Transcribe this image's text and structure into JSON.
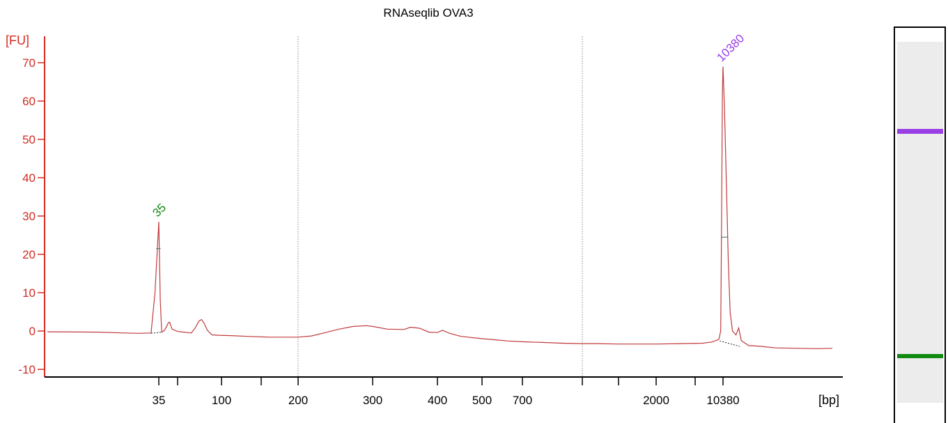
{
  "chart_data": {
    "type": "line",
    "title": "RNAseqlib OVA3",
    "ylabel": "[FU]",
    "xlabel": "[bp]",
    "ylim": [
      -12,
      75
    ],
    "y_ticks": [
      -10,
      0,
      10,
      20,
      30,
      40,
      50,
      60,
      70
    ],
    "x_tick_labels": [
      "35",
      "100",
      "200",
      "300",
      "400",
      "500",
      "700",
      "2000",
      "10380"
    ],
    "x_unlabeled_ticks": [
      "50",
      "150",
      "1000",
      "1500",
      "4000"
    ],
    "dotted_gridlines_at": [
      "200",
      "1000"
    ],
    "peaks": [
      {
        "label": "35",
        "bp": 35,
        "fu": 28.5,
        "color": "#118a11"
      },
      {
        "label": "10380",
        "bp": 10380,
        "fu": 69,
        "color": "#9a3ee6"
      }
    ],
    "series": [
      {
        "color": "#c0393b",
        "points": [
          [
            15,
            -0.2
          ],
          [
            22,
            -0.3
          ],
          [
            27,
            -0.5
          ],
          [
            30,
            -0.6
          ],
          [
            33,
            -0.5
          ],
          [
            34,
            10
          ],
          [
            35,
            28.5
          ],
          [
            36,
            8
          ],
          [
            37,
            -0.3
          ],
          [
            39,
            0.2
          ],
          [
            41,
            1.5
          ],
          [
            42,
            2.2
          ],
          [
            43,
            2.3
          ],
          [
            45,
            0.5
          ],
          [
            50,
            -0.1
          ],
          [
            55,
            -0.3
          ],
          [
            62,
            -0.5
          ],
          [
            66,
            0.8
          ],
          [
            70,
            2.6
          ],
          [
            73,
            3.0
          ],
          [
            76,
            2.0
          ],
          [
            80,
            0.2
          ],
          [
            86,
            -1.0
          ],
          [
            95,
            -1.1
          ],
          [
            110,
            -1.2
          ],
          [
            130,
            -1.4
          ],
          [
            160,
            -1.6
          ],
          [
            190,
            -1.6
          ],
          [
            200,
            -1.6
          ],
          [
            215,
            -1.3
          ],
          [
            230,
            -0.5
          ],
          [
            250,
            0.5
          ],
          [
            270,
            1.2
          ],
          [
            290,
            1.4
          ],
          [
            300,
            1.2
          ],
          [
            320,
            0.5
          ],
          [
            345,
            0.4
          ],
          [
            355,
            1.0
          ],
          [
            370,
            0.7
          ],
          [
            385,
            -0.3
          ],
          [
            400,
            -0.4
          ],
          [
            410,
            0.2
          ],
          [
            425,
            -0.6
          ],
          [
            450,
            -1.4
          ],
          [
            500,
            -2.0
          ],
          [
            560,
            -2.3
          ],
          [
            620,
            -2.6
          ],
          [
            700,
            -2.8
          ],
          [
            800,
            -3.0
          ],
          [
            900,
            -3.2
          ],
          [
            1000,
            -3.3
          ],
          [
            1200,
            -3.3
          ],
          [
            1500,
            -3.4
          ],
          [
            2000,
            -3.4
          ],
          [
            3000,
            -3.3
          ],
          [
            5000,
            -3.2
          ],
          [
            7000,
            -2.9
          ],
          [
            9000,
            -2.2
          ],
          [
            9600,
            0
          ],
          [
            9900,
            30
          ],
          [
            10150,
            62
          ],
          [
            10380,
            69
          ],
          [
            10600,
            58
          ],
          [
            10900,
            38
          ],
          [
            11200,
            18
          ],
          [
            11500,
            5
          ],
          [
            11900,
            0
          ],
          [
            12500,
            -1.0
          ],
          [
            13000,
            0.8
          ],
          [
            13500,
            -2.5
          ],
          [
            15000,
            -3.8
          ],
          [
            18000,
            -4.0
          ],
          [
            22000,
            -4.4
          ],
          [
            30000,
            -4.5
          ],
          [
            40000,
            -4.6
          ],
          [
            50000,
            -4.5
          ]
        ]
      }
    ],
    "baselines": [
      {
        "from_bp": 33,
        "to_bp": 37,
        "fu": [
          -0.6,
          -0.3
        ]
      },
      {
        "from_bp": 9300,
        "to_bp": 13200,
        "fu": [
          -2.6,
          -4.0
        ]
      }
    ],
    "peak_width_markers": [
      {
        "from_bp": 34.3,
        "to_bp": 36.2,
        "fu": 21.5
      },
      {
        "from_bp": 9700,
        "to_bp": 11100,
        "fu": 24.5
      }
    ]
  },
  "gel": {
    "bands": [
      {
        "label": "10380",
        "color": "#9a3ee6"
      },
      {
        "label": "35",
        "color": "#118a11"
      }
    ]
  }
}
